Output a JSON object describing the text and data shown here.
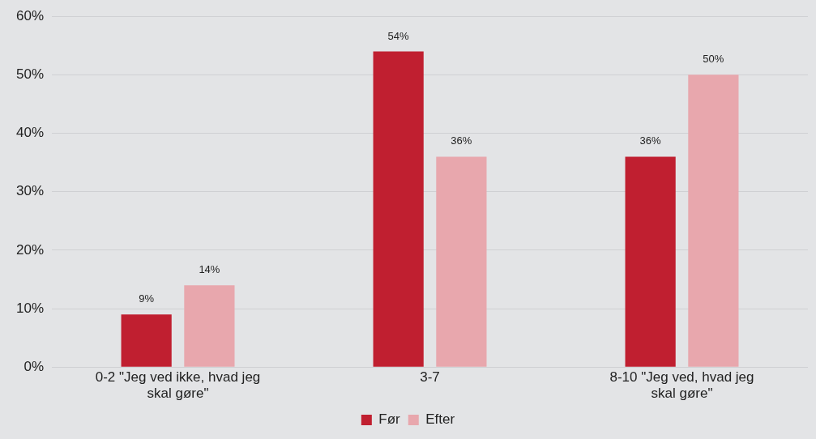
{
  "chart_data": {
    "type": "bar",
    "categories": [
      "0-2 \"Jeg ved ikke, hvad jeg skal gøre\"",
      "3-7",
      "8-10 \"Jeg ved, hvad jeg skal gøre\""
    ],
    "series": [
      {
        "name": "Før",
        "color": "#c01f30",
        "values": [
          9,
          54,
          36
        ],
        "value_labels": [
          "9%",
          "54%",
          "36%"
        ]
      },
      {
        "name": "Efter",
        "color": "#e8a7ad",
        "values": [
          14,
          36,
          50
        ],
        "value_labels": [
          "14%",
          "36%",
          "50%"
        ]
      }
    ],
    "ylim": [
      0,
      60
    ],
    "yticks": [
      {
        "value": 0,
        "label": "0%"
      },
      {
        "value": 10,
        "label": "10%"
      },
      {
        "value": 20,
        "label": "20%"
      },
      {
        "value": 30,
        "label": "30%"
      },
      {
        "value": 40,
        "label": "40%"
      },
      {
        "value": 50,
        "label": "50%"
      },
      {
        "value": 60,
        "label": "60%"
      }
    ],
    "grid": "y",
    "legend": "bottom"
  }
}
